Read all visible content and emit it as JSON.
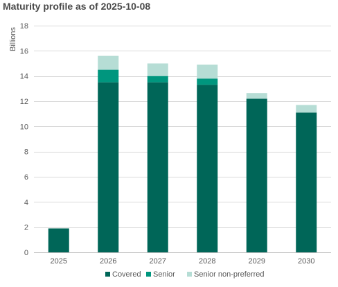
{
  "chart_data": {
    "type": "bar",
    "stacked": true,
    "title": "Maturity profile as of 2025-10-08",
    "ylabel": "Billions",
    "xlabel": "",
    "categories": [
      "2025",
      "2026",
      "2027",
      "2028",
      "2029",
      "2030"
    ],
    "series": [
      {
        "name": "Covered",
        "color": "#006658",
        "values": [
          1.9,
          13.5,
          13.5,
          13.3,
          12.2,
          11.1
        ]
      },
      {
        "name": "Senior",
        "color": "#00967e",
        "values": [
          0,
          1.0,
          0.5,
          0.5,
          0,
          0
        ]
      },
      {
        "name": "Senior non-preferred",
        "color": "#b6ddd5",
        "values": [
          0,
          1.1,
          1.0,
          1.1,
          0.45,
          0.6
        ]
      }
    ],
    "ylim": [
      0,
      18
    ],
    "yticks": [
      0,
      2,
      4,
      6,
      8,
      10,
      12,
      14,
      16,
      18
    ],
    "grid": true,
    "legend_position": "bottom"
  }
}
